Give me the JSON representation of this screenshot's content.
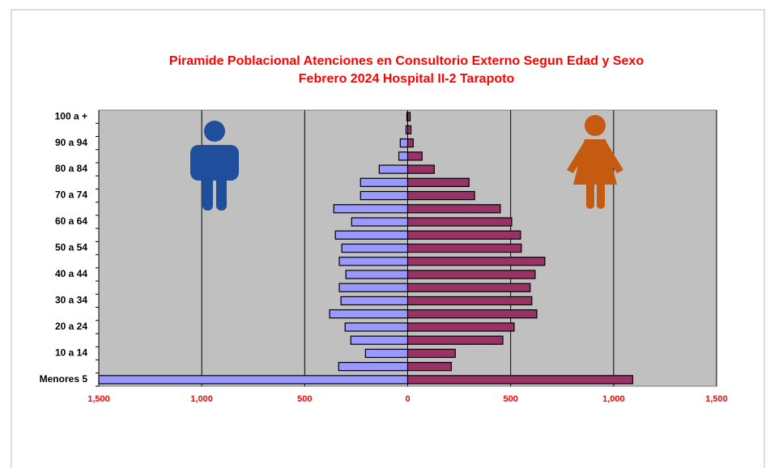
{
  "chart_data": {
    "type": "pyramid",
    "title": "Piramide Poblacional  Atenciones en Consultorio Externo Segun Edad y Sexo",
    "subtitle": "Febrero 2024  Hospital II-2  Tarapoto",
    "categories": [
      "Menores 5",
      null,
      "10 a 14",
      null,
      "20 a 24",
      null,
      "30 a 34",
      null,
      "40 a 44",
      null,
      "50 a 54",
      null,
      "60 a 64",
      null,
      "70 a 74",
      null,
      "80 a 84",
      null,
      "90 a 94",
      null,
      "100 a +"
    ],
    "series": [
      {
        "color": "#9999ff",
        "side": "left",
        "values": [
          1500,
          335,
          205,
          276,
          304,
          379,
          324,
          332,
          300,
          332,
          320,
          351,
          272,
          359,
          229,
          229,
          138,
          43,
          36,
          8,
          4
        ]
      },
      {
        "color": "#993366",
        "side": "right",
        "values": [
          1093,
          212,
          231,
          462,
          517,
          627,
          603,
          595,
          619,
          666,
          552,
          548,
          505,
          450,
          325,
          298,
          129,
          70,
          27,
          16,
          12
        ]
      }
    ],
    "xlim": [
      -1500,
      1500
    ],
    "xticks": [
      {
        "value": -1500,
        "label": "1,500"
      },
      {
        "value": -1000,
        "label": "1,000"
      },
      {
        "value": -500,
        "label": "500"
      },
      0,
      {
        "value": 500,
        "label": "500"
      },
      {
        "value": 1000,
        "label": "1,000"
      },
      {
        "value": 1500,
        "label": "1,500"
      }
    ],
    "grid": true
  }
}
